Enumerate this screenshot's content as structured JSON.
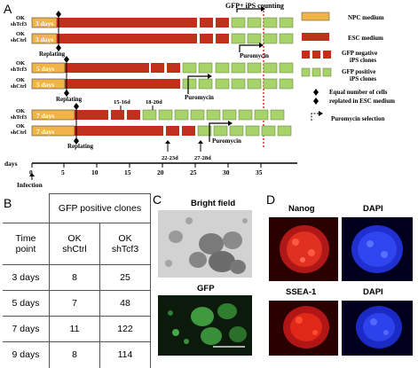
{
  "panels": {
    "a": "A",
    "b": "B",
    "c": "C",
    "d": "D"
  },
  "panel_a": {
    "top_annotation": "GFP+  iPS counting",
    "rows": [
      {
        "group": "3 days",
        "labels": [
          {
            "line1": "OK",
            "line2": "shTcf3"
          },
          {
            "line1": "OK",
            "line2": "shCtrl"
          }
        ],
        "box": "3 days"
      },
      {
        "group": "5 days",
        "labels": [
          {
            "line1": "OK",
            "line2": "shTcf3"
          },
          {
            "line1": "OK",
            "line2": "shCtrl"
          }
        ],
        "box": "5 days"
      },
      {
        "group": "7 days",
        "labels": [
          {
            "line1": "OK",
            "line2": "shTcf3"
          },
          {
            "line1": "OK",
            "line2": "shCtrl"
          }
        ],
        "box": "7 days"
      }
    ],
    "replating": "Replating",
    "puromycin": "Puromycin",
    "day_notes": {
      "d15": "15-16d",
      "d18": "18-20d",
      "d22": "22-23d",
      "d27": "27-28d"
    },
    "axis": {
      "label": "days",
      "infection": "Infection",
      "ticks": [
        "0",
        "5",
        "10",
        "15",
        "20",
        "25",
        "30",
        "35"
      ]
    },
    "legend": [
      {
        "text": "NPC medium",
        "swatch": "npc"
      },
      {
        "text": "ESC medium",
        "swatch": "esc"
      },
      {
        "text": "GFP negative iPS clones",
        "swatch": "gfpneg"
      },
      {
        "text": "GFP positive iPS clones",
        "swatch": "gfppos"
      },
      {
        "text": "Equal number of cells replated in ESC medium",
        "swatch": "diamond"
      },
      {
        "text": "Puromycin selection",
        "swatch": "arrow"
      }
    ],
    "colors": {
      "npc": "#f2b447",
      "esc": "#c0311c",
      "gfp": "#a8d36a",
      "dotted_line": "#cc0000"
    }
  },
  "panel_b": {
    "header": "GFP positive clones",
    "col1_header": "Time point",
    "col2_header": "OK shCtrl",
    "col3_header": "OK shTcf3",
    "rows": [
      {
        "time": "3 days",
        "shctrl": "8",
        "shtcf3": "25"
      },
      {
        "time": "5 days",
        "shctrl": "7",
        "shtcf3": "48"
      },
      {
        "time": "7 days",
        "shctrl": "11",
        "shtcf3": "122"
      },
      {
        "time": "9 days",
        "shctrl": "8",
        "shtcf3": "114"
      }
    ]
  },
  "panel_c": {
    "top_label": "Bright field",
    "bottom_label": "GFP"
  },
  "panel_d": {
    "tl": "Nanog",
    "tr": "DAPI",
    "bl": "SSEA-1",
    "br": "DAPI"
  }
}
